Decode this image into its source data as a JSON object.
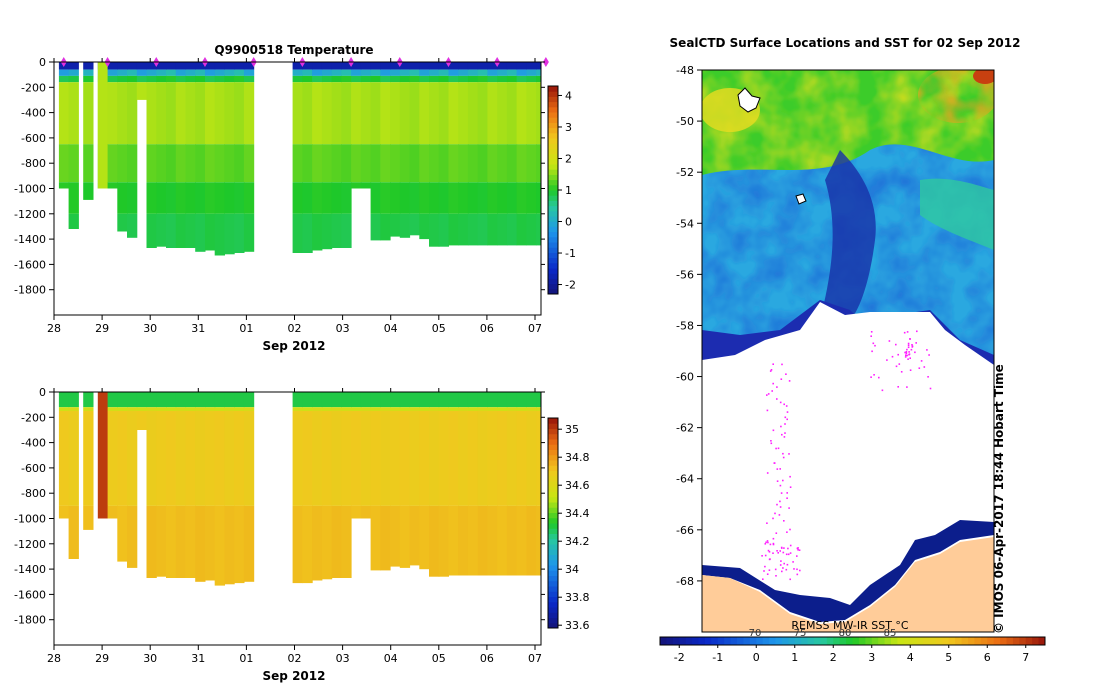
{
  "chart_data": [
    {
      "type": "heatmap",
      "title": "Q9900518  Temperature",
      "xlabel": "Sep 2012",
      "ylabel": "",
      "xticks": [
        "28",
        "29",
        "30",
        "31",
        "01",
        "02",
        "03",
        "04",
        "05",
        "06",
        "07"
      ],
      "yticks": [
        0,
        -200,
        -400,
        -600,
        -800,
        -1000,
        -1200,
        -1400,
        -1600,
        -1800
      ],
      "ylim": [
        -2000,
        0
      ],
      "colorbar": {
        "min": -2.3,
        "max": 4.3,
        "ticks": [
          -2,
          -1,
          0,
          1,
          2,
          3,
          4
        ]
      },
      "profile_days": [
        0.1,
        0.3,
        0.6,
        0.9,
        1.1,
        1.3,
        1.5,
        1.7,
        1.9,
        2.1,
        2.3,
        2.5,
        2.7,
        2.9,
        3.1,
        3.3,
        3.5,
        3.7,
        3.9,
        4.9,
        5.1,
        5.3,
        5.5,
        5.7,
        5.9,
        6.1,
        6.3,
        6.5,
        6.7,
        6.9,
        7.1,
        7.3,
        7.5,
        7.7,
        7.9,
        8.1,
        8.3,
        8.5,
        8.7,
        8.9,
        9.1,
        9.3,
        9.5,
        9.7,
        9.9
      ],
      "profile_max_depth": [
        -1000,
        -1320,
        -1090,
        -1000,
        -1000,
        -1340,
        -1390,
        -300,
        -1470,
        -1460,
        -1470,
        -1470,
        -1470,
        -1500,
        -1490,
        -1530,
        -1520,
        -1510,
        -1500,
        -1510,
        -1510,
        -1490,
        -1480,
        -1470,
        -1470,
        -1000,
        -1000,
        -1410,
        -1410,
        -1380,
        -1390,
        -1370,
        -1400,
        -1460,
        -1460,
        -1450,
        -1450,
        -1450,
        -1450,
        -1450,
        -1450,
        -1450,
        -1450,
        -1450,
        -1450
      ],
      "surface_marker_days": [
        0.1,
        1.0,
        2.0,
        3.0,
        4.0,
        5.0,
        6.0,
        7.0,
        8.0,
        9.0,
        10.0
      ],
      "temperature_levels": {
        "surface": -1.8,
        "thermocline": 0.8,
        "mid": 1.7,
        "deep": 0.9
      }
    },
    {
      "type": "heatmap",
      "title": "",
      "xlabel": "Sep 2012",
      "xticks": [
        "28",
        "29",
        "30",
        "31",
        "01",
        "02",
        "03",
        "04",
        "05",
        "06",
        "07"
      ],
      "yticks": [
        0,
        -200,
        -400,
        -600,
        -800,
        -1000,
        -1200,
        -1400,
        -1600,
        -1800
      ],
      "ylim": [
        -2000,
        0
      ],
      "colorbar": {
        "min": 33.58,
        "max": 35.08,
        "ticks": [
          33.6,
          33.8,
          34,
          34.2,
          34.4,
          34.6,
          34.8,
          35
        ]
      },
      "colorbar_labels": [
        "33.6",
        "33.8",
        "34",
        "34.2",
        "34.4",
        "34.6",
        "34.8",
        "35"
      ],
      "salinity_levels": {
        "surface": 34.3,
        "subsurface": 34.7,
        "deep": 34.72,
        "high_column": 35.0
      }
    },
    {
      "type": "heatmap",
      "title": "SealCTD Surface Locations and SST for 02 Sep 2012",
      "xlabel": "",
      "ylabel": "",
      "yticks": [
        -48,
        -50,
        -52,
        -54,
        -56,
        -58,
        -60,
        -62,
        -64,
        -66,
        -68
      ],
      "ylim": [
        -70,
        -48
      ],
      "colorbar": {
        "min": -2.5,
        "max": 7.5,
        "ticks": [
          -2,
          -1,
          0,
          1,
          2,
          3,
          4,
          5,
          6,
          7
        ],
        "secondary_ticks": [
          "70",
          "75",
          "80",
          "85"
        ]
      },
      "source_label": "REMSS MW-IR SST °C",
      "credit": "© IMOS 06-Apr-2017 18:44 Hobart Time"
    }
  ]
}
